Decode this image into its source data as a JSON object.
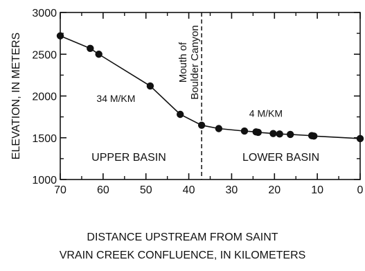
{
  "chart_data": {
    "type": "line",
    "xlabel_lines": [
      "DISTANCE UPSTREAM FROM SAINT",
      "VRAIN CREEK CONFLUENCE, IN KILOMETERS"
    ],
    "ylabel": "ELEVATION, IN METERS",
    "xlim": [
      70,
      0
    ],
    "ylim": [
      1000,
      3000
    ],
    "x_reversed": true,
    "x_ticks": [
      70,
      60,
      50,
      40,
      30,
      20,
      10,
      0
    ],
    "y_ticks": [
      1000,
      1500,
      2000,
      2500,
      3000
    ],
    "x_tick_labels": [
      "70",
      "60",
      "50",
      "40",
      "30",
      "20",
      "10",
      "0"
    ],
    "y_tick_labels": [
      "1000",
      "1500",
      "2000",
      "2500",
      "3000"
    ],
    "grid": false,
    "series": [
      {
        "x": [
          70,
          63,
          61,
          49,
          42,
          37,
          33,
          27,
          24.3,
          23.8,
          20.3,
          18.8,
          16.3,
          11.3,
          10.8,
          0
        ],
        "y": [
          2720,
          2570,
          2500,
          2120,
          1780,
          1650,
          1610,
          1580,
          1570,
          1565,
          1550,
          1545,
          1540,
          1525,
          1520,
          1490
        ]
      }
    ],
    "annotations": [
      {
        "text": "34 M/KM",
        "x": 57,
        "y": 1930
      },
      {
        "text": "4 M/KM",
        "x": 22,
        "y": 1750
      },
      {
        "text": "UPPER BASIN",
        "x": 54,
        "y": 1225
      },
      {
        "text": "LOWER BASIN",
        "x": 18.5,
        "y": 1225
      }
    ],
    "divider": {
      "x": 37,
      "label_lines": [
        "Mouth of",
        "Boulder Canyon"
      ]
    }
  }
}
